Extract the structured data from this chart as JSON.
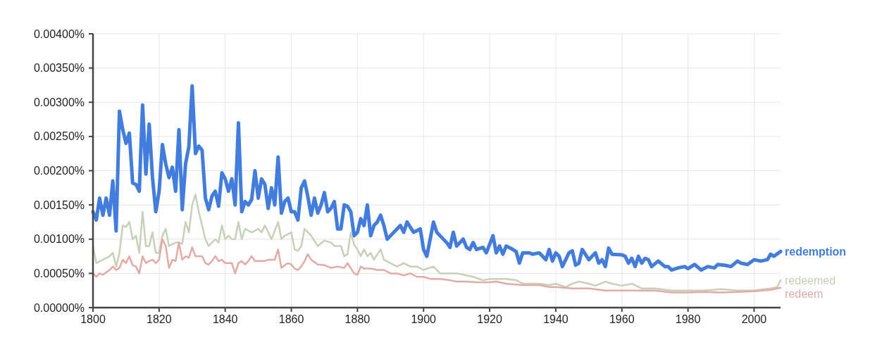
{
  "chart_data": {
    "type": "line",
    "xlim": [
      1800,
      2008
    ],
    "xticks": [
      1800,
      1820,
      1840,
      1860,
      1880,
      1900,
      1920,
      1940,
      1960,
      1980,
      2000
    ],
    "ylim": [
      0,
      0.004
    ],
    "yticks": [
      {
        "value": 0,
        "label": "0.00000%"
      },
      {
        "value": 0.0005,
        "label": "0.00050%"
      },
      {
        "value": 0.001,
        "label": "0.00100%"
      },
      {
        "value": 0.0015,
        "label": "0.00150%"
      },
      {
        "value": 0.002,
        "label": "0.00200%"
      },
      {
        "value": 0.0025,
        "label": "0.00250%"
      },
      {
        "value": 0.003,
        "label": "0.00300%"
      },
      {
        "value": 0.0035,
        "label": "0.00350%"
      },
      {
        "value": 0.004,
        "label": "0.00400%"
      }
    ],
    "grid": true,
    "line_style": "solid",
    "series": [
      {
        "name": "redemption",
        "color": "#427ddd",
        "x": [
          1800,
          1801,
          1802,
          1803,
          1804,
          1805,
          1806,
          1807,
          1808,
          1809,
          1810,
          1811,
          1812,
          1813,
          1814,
          1815,
          1816,
          1817,
          1818,
          1819,
          1820,
          1821,
          1822,
          1823,
          1824,
          1825,
          1826,
          1827,
          1828,
          1829,
          1830,
          1831,
          1832,
          1833,
          1834,
          1835,
          1836,
          1837,
          1838,
          1839,
          1840,
          1841,
          1842,
          1843,
          1844,
          1845,
          1846,
          1847,
          1848,
          1849,
          1850,
          1851,
          1852,
          1853,
          1854,
          1855,
          1856,
          1857,
          1858,
          1859,
          1860,
          1861,
          1862,
          1863,
          1864,
          1865,
          1866,
          1867,
          1868,
          1869,
          1870,
          1871,
          1872,
          1873,
          1874,
          1875,
          1876,
          1877,
          1878,
          1879,
          1880,
          1881,
          1882,
          1883,
          1884,
          1885,
          1886,
          1887,
          1888,
          1889,
          1890,
          1893,
          1894,
          1895,
          1897,
          1899,
          1900,
          1901,
          1903,
          1904,
          1905,
          1907,
          1908,
          1909,
          1910,
          1912,
          1913,
          1914,
          1915,
          1916,
          1918,
          1919,
          1921,
          1922,
          1923,
          1924,
          1925,
          1927,
          1928,
          1929,
          1930,
          1932,
          1933,
          1935,
          1936,
          1937,
          1938,
          1939,
          1940,
          1941,
          1942,
          1944,
          1945,
          1946,
          1947,
          1948,
          1950,
          1951,
          1952,
          1953,
          1954,
          1955,
          1956,
          1957,
          1960,
          1961,
          1962,
          1963,
          1964,
          1965,
          1966,
          1967,
          1968,
          1969,
          1971,
          1973,
          1974,
          1975,
          1977,
          1979,
          1980,
          1982,
          1984,
          1986,
          1988,
          1989,
          1991,
          1993,
          1995,
          1996,
          1998,
          2000,
          2002,
          2004,
          2005,
          2006,
          2008
        ],
        "values": [
          0.0014,
          0.00128,
          0.0016,
          0.00135,
          0.0016,
          0.00135,
          0.00185,
          0.00112,
          0.00287,
          0.0026,
          0.0024,
          0.00255,
          0.00182,
          0.0018,
          0.0017,
          0.00296,
          0.00195,
          0.00268,
          0.0019,
          0.0014,
          0.0017,
          0.00238,
          0.0021,
          0.0019,
          0.00205,
          0.0017,
          0.0026,
          0.00143,
          0.0021,
          0.00235,
          0.00324,
          0.00225,
          0.00236,
          0.0023,
          0.0016,
          0.00143,
          0.00163,
          0.0017,
          0.00148,
          0.00197,
          0.00188,
          0.0017,
          0.00188,
          0.0015,
          0.0027,
          0.0014,
          0.00155,
          0.0015,
          0.00158,
          0.002,
          0.0016,
          0.00188,
          0.0018,
          0.00145,
          0.00175,
          0.0015,
          0.0022,
          0.00138,
          0.00155,
          0.0016,
          0.0014,
          0.0014,
          0.00128,
          0.00175,
          0.00185,
          0.00162,
          0.00135,
          0.0016,
          0.00138,
          0.0015,
          0.00168,
          0.0014,
          0.00145,
          0.00155,
          0.00115,
          0.00115,
          0.0015,
          0.00148,
          0.0014,
          0.00105,
          0.0011,
          0.0013,
          0.0012,
          0.0015,
          0.00105,
          0.0012,
          0.00125,
          0.00135,
          0.0012,
          0.001,
          0.00105,
          0.0012,
          0.0011,
          0.00125,
          0.0011,
          0.00115,
          0.00085,
          0.00075,
          0.00125,
          0.0011,
          0.00105,
          0.00095,
          0.00088,
          0.0011,
          0.0009,
          0.001,
          0.00088,
          0.00085,
          0.00095,
          0.00085,
          0.00088,
          0.0008,
          0.00105,
          0.0008,
          0.0009,
          0.00078,
          0.0009,
          0.00085,
          0.00082,
          0.00065,
          0.0008,
          0.0008,
          0.00078,
          0.0008,
          0.00075,
          0.0007,
          0.00085,
          0.00068,
          0.0008,
          0.00075,
          0.0006,
          0.0008,
          0.00083,
          0.00062,
          0.00065,
          0.00085,
          0.0007,
          0.00075,
          0.0008,
          0.00065,
          0.0007,
          0.0006,
          0.00087,
          0.00078,
          0.00077,
          0.00075,
          0.00065,
          0.00072,
          0.0006,
          0.00075,
          0.00065,
          0.00072,
          0.0007,
          0.0006,
          0.00068,
          0.0006,
          0.0006,
          0.00055,
          0.00058,
          0.0006,
          0.00057,
          0.00063,
          0.00055,
          0.0006,
          0.00058,
          0.00063,
          0.00062,
          0.0006,
          0.00068,
          0.00065,
          0.00063,
          0.0007,
          0.00068,
          0.0007,
          0.00078,
          0.00075,
          0.00082
        ]
      },
      {
        "name": "redeemed",
        "color": "#c6d1b8",
        "x": [
          1800,
          1801,
          1803,
          1805,
          1806,
          1807,
          1808,
          1809,
          1810,
          1811,
          1812,
          1813,
          1814,
          1815,
          1816,
          1817,
          1818,
          1819,
          1820,
          1821,
          1822,
          1823,
          1825,
          1826,
          1827,
          1828,
          1829,
          1830,
          1831,
          1832,
          1834,
          1835,
          1836,
          1837,
          1838,
          1839,
          1840,
          1841,
          1842,
          1843,
          1844,
          1845,
          1846,
          1848,
          1850,
          1851,
          1852,
          1854,
          1856,
          1857,
          1858,
          1860,
          1861,
          1862,
          1863,
          1864,
          1866,
          1868,
          1870,
          1872,
          1873,
          1875,
          1876,
          1877,
          1878,
          1879,
          1880,
          1881,
          1882,
          1883,
          1884,
          1885,
          1887,
          1888,
          1890,
          1892,
          1894,
          1896,
          1898,
          1900,
          1903,
          1905,
          1907,
          1910,
          1912,
          1915,
          1918,
          1920,
          1922,
          1925,
          1928,
          1930,
          1932,
          1935,
          1938,
          1940,
          1943,
          1945,
          1947,
          1950,
          1952,
          1955,
          1957,
          1960,
          1963,
          1966,
          1970,
          1975,
          1980,
          1985,
          1990,
          1995,
          2000,
          2005,
          2007,
          2008
        ],
        "values": [
          0.0009,
          0.00065,
          0.0007,
          0.00075,
          0.0008,
          0.0006,
          0.0008,
          0.0012,
          0.00118,
          0.00125,
          0.001,
          0.00105,
          0.0008,
          0.0014,
          0.0009,
          0.0009,
          0.0011,
          0.0008,
          0.0008,
          0.00105,
          0.00115,
          0.0009,
          0.00095,
          0.00095,
          0.00093,
          0.00125,
          0.0011,
          0.0015,
          0.00165,
          0.0014,
          0.001,
          0.0009,
          0.00095,
          0.001,
          0.00095,
          0.0012,
          0.001,
          0.00105,
          0.001,
          0.001,
          0.00125,
          0.001,
          0.00115,
          0.0011,
          0.00115,
          0.0011,
          0.0012,
          0.001,
          0.00125,
          0.001,
          0.00105,
          0.0011,
          0.00085,
          0.00083,
          0.0009,
          0.00115,
          0.00105,
          0.0009,
          0.00098,
          0.00095,
          0.0009,
          0.0009,
          0.00075,
          0.00078,
          0.0011,
          0.00092,
          0.00085,
          0.00075,
          0.00085,
          0.00075,
          0.0008,
          0.0007,
          0.00085,
          0.0007,
          0.00065,
          0.0006,
          0.00065,
          0.0006,
          0.0006,
          0.00055,
          0.0006,
          0.0005,
          0.0005,
          0.0005,
          0.00048,
          0.00045,
          0.0004,
          0.00042,
          0.00042,
          0.00042,
          0.0004,
          0.00035,
          0.00035,
          0.00035,
          0.00033,
          0.00035,
          0.0003,
          0.00035,
          0.00038,
          0.00035,
          0.00032,
          0.00038,
          0.00035,
          0.00032,
          0.00035,
          0.00028,
          0.00028,
          0.00025,
          0.00025,
          0.00025,
          0.00027,
          0.00025,
          0.00025,
          0.00028,
          0.0003,
          0.0004
        ]
      },
      {
        "name": "redeem",
        "color": "#e4aaa6",
        "x": [
          1800,
          1801,
          1802,
          1803,
          1805,
          1806,
          1807,
          1808,
          1809,
          1810,
          1811,
          1812,
          1813,
          1814,
          1815,
          1816,
          1817,
          1818,
          1819,
          1820,
          1821,
          1822,
          1823,
          1824,
          1825,
          1826,
          1827,
          1828,
          1829,
          1830,
          1831,
          1832,
          1833,
          1834,
          1835,
          1836,
          1837,
          1838,
          1839,
          1840,
          1841,
          1842,
          1843,
          1844,
          1845,
          1846,
          1847,
          1848,
          1849,
          1850,
          1852,
          1853,
          1854,
          1855,
          1856,
          1857,
          1858,
          1859,
          1860,
          1861,
          1862,
          1863,
          1864,
          1865,
          1866,
          1868,
          1870,
          1872,
          1874,
          1876,
          1877,
          1879,
          1880,
          1881,
          1882,
          1884,
          1886,
          1888,
          1890,
          1892,
          1894,
          1896,
          1898,
          1900,
          1902,
          1905,
          1908,
          1910,
          1913,
          1916,
          1920,
          1922,
          1925,
          1930,
          1935,
          1938,
          1940,
          1945,
          1950,
          1955,
          1960,
          1965,
          1970,
          1975,
          1980,
          1985,
          1990,
          1995,
          2000,
          2005,
          2008
        ],
        "values": [
          0.0005,
          0.00045,
          0.0005,
          0.00048,
          0.00055,
          0.0006,
          0.00055,
          0.00058,
          0.0007,
          0.00065,
          0.00075,
          0.00062,
          0.0006,
          0.0005,
          0.00075,
          0.00065,
          0.00068,
          0.0007,
          0.00065,
          0.0007,
          0.001,
          0.0009,
          0.00058,
          0.0007,
          0.00068,
          0.00095,
          0.0007,
          0.00075,
          0.00073,
          0.00088,
          0.00075,
          0.00075,
          0.00075,
          0.00065,
          0.00063,
          0.00068,
          0.00075,
          0.00068,
          0.0007,
          0.00065,
          0.00065,
          0.00065,
          0.0005,
          0.00065,
          0.00068,
          0.00063,
          0.00068,
          0.00075,
          0.00068,
          0.00068,
          0.00068,
          0.0007,
          0.0007,
          0.0007,
          0.00085,
          0.00058,
          0.00062,
          0.00065,
          0.00063,
          0.00057,
          0.00055,
          0.0006,
          0.00068,
          0.00078,
          0.0007,
          0.00063,
          0.00062,
          0.00058,
          0.0006,
          0.00058,
          0.00065,
          0.0005,
          0.00048,
          0.0006,
          0.00057,
          0.00057,
          0.00055,
          0.00055,
          0.0005,
          0.0005,
          0.00047,
          0.0005,
          0.00045,
          0.00045,
          0.00042,
          0.00042,
          0.0004,
          0.00038,
          0.00038,
          0.00037,
          0.00037,
          0.00038,
          0.00035,
          0.00033,
          0.00033,
          0.0003,
          0.0003,
          0.00028,
          0.00028,
          0.00025,
          0.00025,
          0.00025,
          0.00025,
          0.00022,
          0.00022,
          0.00023,
          0.00022,
          0.00023,
          0.00024,
          0.00026,
          0.00029
        ]
      }
    ]
  }
}
